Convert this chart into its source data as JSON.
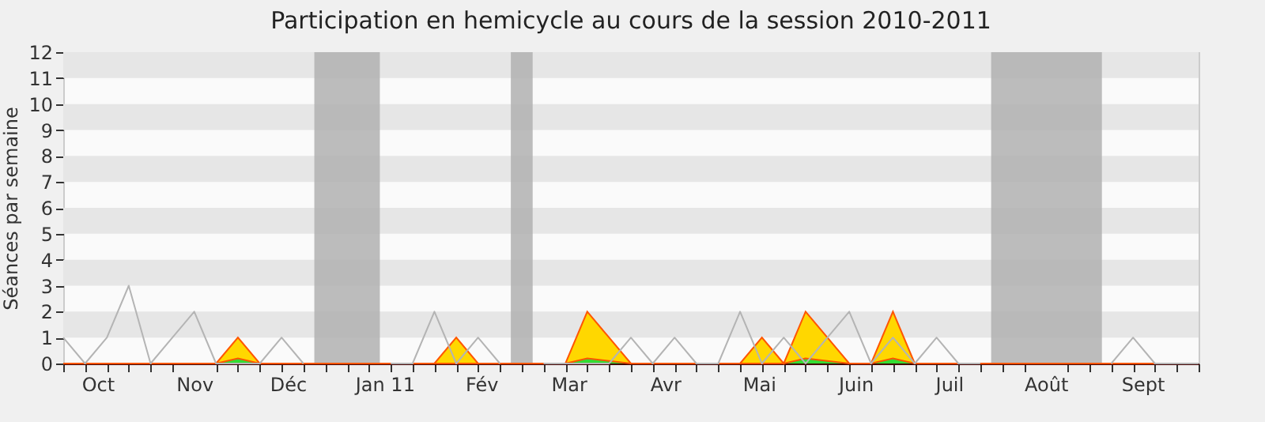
{
  "chart_data": {
    "type": "area",
    "title": "Participation en hemicycle au cours de la session 2010-2011",
    "ylabel": "Séances par semaine",
    "x": [
      "2010-09-20",
      "2010-09-27",
      "2010-10-04",
      "2010-10-11",
      "2010-10-18",
      "2010-10-25",
      "2010-11-01",
      "2010-11-08",
      "2010-11-15",
      "2010-11-22",
      "2010-11-29",
      "2010-12-06",
      "2010-12-13",
      "2010-12-20",
      "2010-12-27",
      "2011-01-03",
      "2011-01-10",
      "2011-01-17",
      "2011-01-24",
      "2011-01-31",
      "2011-02-07",
      "2011-02-14",
      "2011-02-21",
      "2011-02-28",
      "2011-03-07",
      "2011-03-14",
      "2011-03-21",
      "2011-03-28",
      "2011-04-04",
      "2011-04-11",
      "2011-04-18",
      "2011-04-25",
      "2011-05-02",
      "2011-05-09",
      "2011-05-16",
      "2011-05-23",
      "2011-05-30",
      "2011-06-06",
      "2011-06-13",
      "2011-06-20",
      "2011-06-27",
      "2011-07-04",
      "2011-07-11",
      "2011-07-18",
      "2011-07-25",
      "2011-08-01",
      "2011-08-08",
      "2011-08-15",
      "2011-08-22",
      "2011-08-29",
      "2011-09-05",
      "2011-09-12",
      "2011-09-19"
    ],
    "series": [
      {
        "color": "#ffd700",
        "values": [
          0,
          0,
          0,
          0,
          0,
          0,
          0,
          0,
          1,
          0,
          0,
          0,
          0,
          0,
          0,
          0,
          0,
          0,
          1,
          0,
          0,
          0,
          0,
          0,
          2,
          1,
          0,
          0,
          0,
          0,
          0,
          0,
          1,
          0,
          2,
          1,
          0,
          0,
          2,
          0,
          0,
          0,
          0,
          0,
          0,
          0,
          0,
          0,
          0,
          0,
          0,
          0,
          0
        ]
      },
      {
        "color": "#33dd33",
        "values": [
          0,
          0,
          0,
          0,
          0,
          0,
          0,
          0,
          0.2,
          0,
          0,
          0,
          0,
          0,
          0,
          0,
          0,
          0,
          0,
          0,
          0,
          0,
          0,
          0,
          0.2,
          0.1,
          0,
          0,
          0,
          0,
          0,
          0,
          0,
          0,
          0.2,
          0.1,
          0,
          0,
          0.2,
          0,
          0,
          0,
          0,
          0,
          0,
          0,
          0,
          0,
          0,
          0,
          0,
          0,
          0
        ]
      },
      {
        "type": "line",
        "color": "#b4b4b4",
        "values": [
          1,
          0,
          1,
          3,
          0,
          1,
          2,
          0,
          0,
          0,
          1,
          0,
          null,
          null,
          null,
          0,
          0,
          2,
          0,
          1,
          0,
          null,
          0,
          0,
          0,
          0,
          1,
          0,
          1,
          0,
          0,
          2,
          0,
          1,
          0,
          1,
          2,
          0,
          1,
          0,
          1,
          0,
          0,
          null,
          null,
          null,
          null,
          null,
          0,
          1,
          0,
          0,
          0
        ]
      }
    ],
    "xlim": [
      "2010-09-20",
      "2011-09-19"
    ],
    "xticks": [
      {
        "value": "2010-09-20",
        "label": null
      },
      {
        "value": "2010-09-27",
        "label": null
      },
      {
        "value": "2010-10-01",
        "label": "Oct"
      },
      {
        "value": "2010-10-04",
        "label": null
      },
      {
        "value": "2010-10-11",
        "label": null
      },
      {
        "value": "2010-10-18",
        "label": null
      },
      {
        "value": "2010-10-25",
        "label": null
      },
      {
        "value": "2010-11-01",
        "label": "Nov"
      },
      {
        "value": "2010-11-08",
        "label": null
      },
      {
        "value": "2010-11-15",
        "label": null
      },
      {
        "value": "2010-11-22",
        "label": null
      },
      {
        "value": "2010-11-29",
        "label": null
      },
      {
        "value": "2010-12-01",
        "label": "Déc"
      },
      {
        "value": "2010-12-06",
        "label": null
      },
      {
        "value": "2010-12-13",
        "label": null
      },
      {
        "value": "2010-12-20",
        "label": null
      },
      {
        "value": "2010-12-27",
        "label": null
      },
      {
        "value": "2011-01-01",
        "label": "Jan 11"
      },
      {
        "value": "2011-01-03",
        "label": null
      },
      {
        "value": "2011-01-10",
        "label": null
      },
      {
        "value": "2011-01-17",
        "label": null
      },
      {
        "value": "2011-01-24",
        "label": null
      },
      {
        "value": "2011-01-31",
        "label": null
      },
      {
        "value": "2011-02-01",
        "label": "Fév"
      },
      {
        "value": "2011-02-07",
        "label": null
      },
      {
        "value": "2011-02-14",
        "label": null
      },
      {
        "value": "2011-02-21",
        "label": null
      },
      {
        "value": "2011-02-28",
        "label": null
      },
      {
        "value": "2011-03-01",
        "label": "Mar"
      },
      {
        "value": "2011-03-07",
        "label": null
      },
      {
        "value": "2011-03-14",
        "label": null
      },
      {
        "value": "2011-03-21",
        "label": null
      },
      {
        "value": "2011-03-28",
        "label": null
      },
      {
        "value": "2011-04-01",
        "label": "Avr"
      },
      {
        "value": "2011-04-04",
        "label": null
      },
      {
        "value": "2011-04-11",
        "label": null
      },
      {
        "value": "2011-04-18",
        "label": null
      },
      {
        "value": "2011-04-25",
        "label": null
      },
      {
        "value": "2011-05-01",
        "label": "Mai"
      },
      {
        "value": "2011-05-02",
        "label": null
      },
      {
        "value": "2011-05-09",
        "label": null
      },
      {
        "value": "2011-05-16",
        "label": null
      },
      {
        "value": "2011-05-23",
        "label": null
      },
      {
        "value": "2011-05-30",
        "label": null
      },
      {
        "value": "2011-06-01",
        "label": "Juin"
      },
      {
        "value": "2011-06-06",
        "label": null
      },
      {
        "value": "2011-06-13",
        "label": null
      },
      {
        "value": "2011-06-20",
        "label": null
      },
      {
        "value": "2011-06-27",
        "label": null
      },
      {
        "value": "2011-07-01",
        "label": "Juil"
      },
      {
        "value": "2011-07-04",
        "label": null
      },
      {
        "value": "2011-07-11",
        "label": null
      },
      {
        "value": "2011-07-18",
        "label": null
      },
      {
        "value": "2011-07-25",
        "label": null
      },
      {
        "value": "2011-08-01",
        "label": "Août"
      },
      {
        "value": "2011-08-08",
        "label": null
      },
      {
        "value": "2011-08-15",
        "label": null
      },
      {
        "value": "2011-08-22",
        "label": null
      },
      {
        "value": "2011-08-29",
        "label": null
      },
      {
        "value": "2011-09-01",
        "label": "Sept"
      },
      {
        "value": "2011-09-05",
        "label": null
      },
      {
        "value": "2011-09-12",
        "label": null
      },
      {
        "value": "2011-09-19",
        "label": null
      }
    ],
    "ylim": [
      0,
      12
    ],
    "yticks": [
      0,
      1,
      2,
      3,
      4,
      5,
      6,
      7,
      8,
      9,
      10,
      11,
      12
    ],
    "bands": [
      {
        "axis": "x",
        "from": "2010-12-09T12:00",
        "to": "2010-12-30T12:00",
        "color": "#b0b0b0"
      },
      {
        "axis": "x",
        "from": "2011-02-10T12:00",
        "to": "2011-02-17T12:00",
        "color": "#b0b0b0"
      },
      {
        "axis": "x",
        "from": "2011-07-14T12:00",
        "to": "2011-08-19",
        "color": "#b0b0b0"
      }
    ]
  }
}
